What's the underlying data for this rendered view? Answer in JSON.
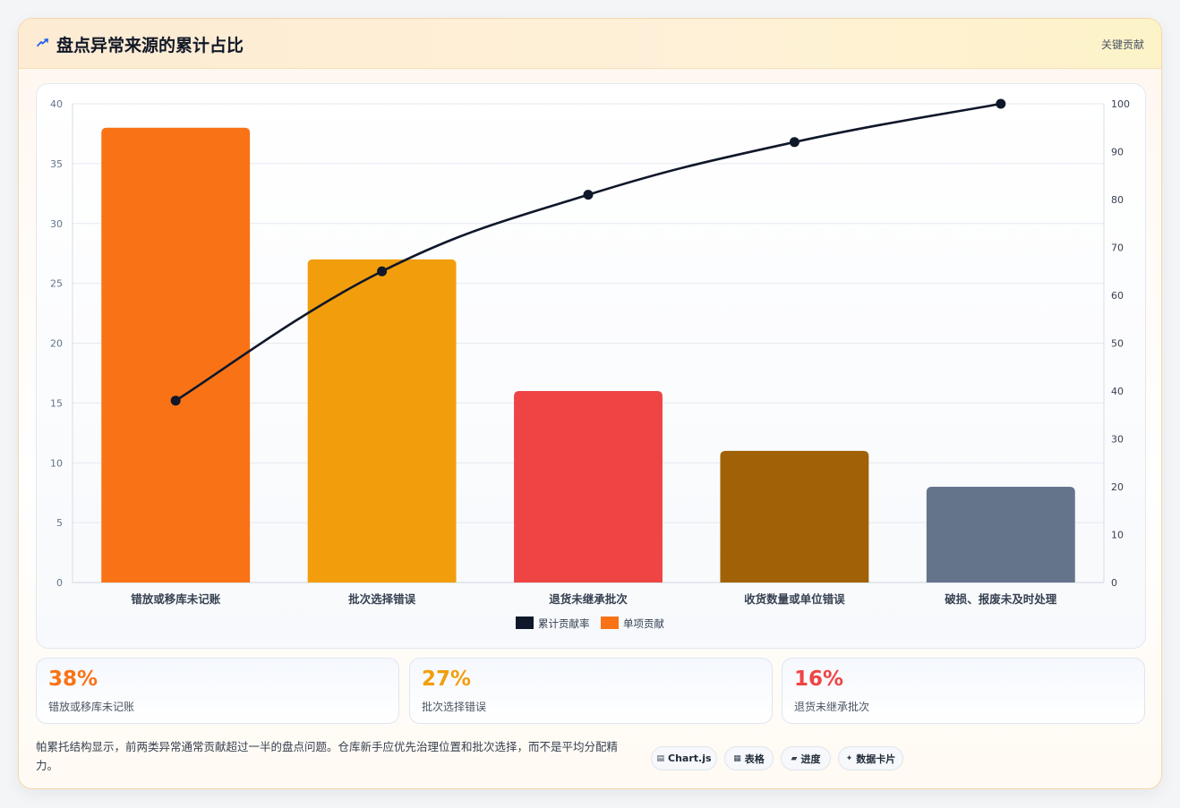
{
  "header": {
    "title": "盘点异常来源的累计占比",
    "badge": "关键贡献"
  },
  "chart_data": {
    "type": "bar",
    "categories": [
      "错放或移库未记账",
      "批次选择错误",
      "退货未继承批次",
      "收货数量或单位错误",
      "破损、报废未及时处理"
    ],
    "series": [
      {
        "name": "单项贡献",
        "type": "bar",
        "axis": "left",
        "values": [
          38,
          27,
          16,
          11,
          8
        ],
        "colors": [
          "#f97316",
          "#f29e0c",
          "#ef4444",
          "#a16207",
          "#64748b"
        ]
      },
      {
        "name": "累计贡献率",
        "type": "line",
        "axis": "right",
        "values": [
          38,
          65,
          81,
          92,
          100
        ],
        "color": "#0f172a"
      }
    ],
    "y_left": {
      "min": 0,
      "max": 40,
      "ticks": [
        "0",
        "5",
        "10",
        "15",
        "20",
        "25",
        "30",
        "35",
        "40"
      ]
    },
    "y_right": {
      "min": 0,
      "max": 100,
      "ticks": [
        "0",
        "10",
        "20",
        "30",
        "40",
        "50",
        "60",
        "70",
        "80",
        "90",
        "100"
      ]
    },
    "legend": [
      {
        "label": "累计贡献率",
        "color": "#0f172a"
      },
      {
        "label": "单项贡献",
        "color": "#f97316"
      }
    ],
    "legend_position": "bottom",
    "grid": true
  },
  "kpis": [
    {
      "value": "38%",
      "label": "错放或移库未记账",
      "color": "#f97316"
    },
    {
      "value": "27%",
      "label": "批次选择错误",
      "color": "#f29e0c"
    },
    {
      "value": "16%",
      "label": "退货未继承批次",
      "color": "#ef4444"
    }
  ],
  "footer": {
    "text": "帕累托结构显示，前两类异常通常贡献超过一半的盘点问题。仓库新手应优先治理位置和批次选择，而不是平均分配精力。",
    "chips": [
      {
        "icon": "▤",
        "label": "Chart.js"
      },
      {
        "icon": "▦",
        "label": "表格"
      },
      {
        "icon": "▰",
        "label": "进度"
      },
      {
        "icon": "✦",
        "label": "数据卡片"
      }
    ]
  },
  "colors": {
    "accent": "#f97316",
    "border": "#f6d7a8"
  }
}
